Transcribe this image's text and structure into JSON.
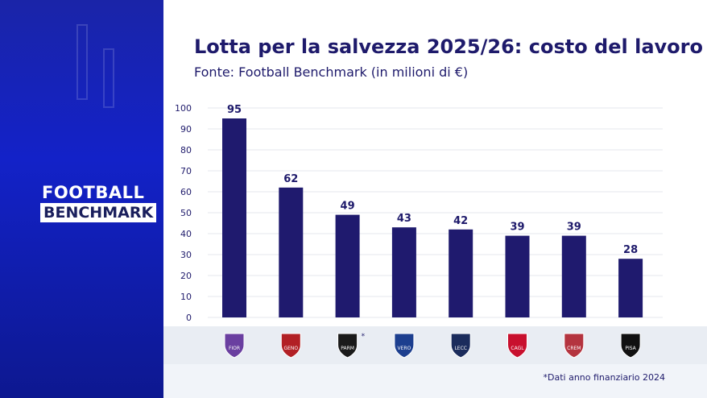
{
  "brand": {
    "line1": "FOOTBALL",
    "line2": "BENCHMARK"
  },
  "chart_data": {
    "type": "bar",
    "title": "Lotta per la salvezza 2025/26: costo del lavoro",
    "subtitle": "Fonte: Football Benchmark (in milioni di €)",
    "categories": [
      "Fiorentina",
      "Genoa",
      "Parma",
      "Verona",
      "Lecce",
      "Cagliari",
      "Cremonese",
      "Pisa"
    ],
    "values": [
      95,
      62,
      49,
      43,
      42,
      39,
      39,
      28
    ],
    "asterisk": [
      false,
      false,
      true,
      false,
      false,
      false,
      false,
      false
    ],
    "yticks": [
      0,
      10,
      20,
      30,
      40,
      50,
      60,
      70,
      80,
      90,
      100
    ],
    "ylim": [
      0,
      100
    ],
    "grid": true,
    "bar_color": "#1f1a6e",
    "footnote": "*Dati anno finanziario 2024"
  }
}
